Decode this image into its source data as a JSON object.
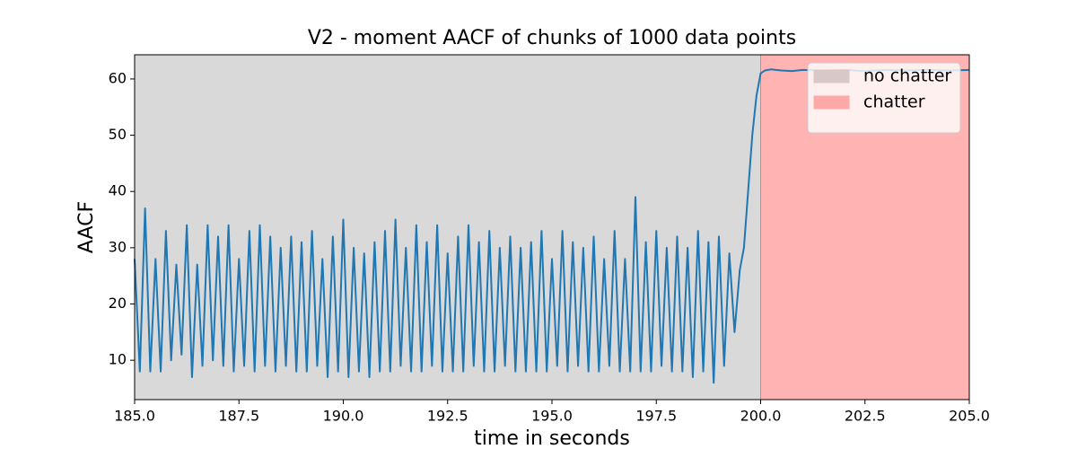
{
  "chart_data": {
    "type": "line",
    "title": "V2 - moment AACF of chunks of 1000 data points",
    "x_label": "time in seconds",
    "y_label": "AACF",
    "xlim": [
      185,
      205
    ],
    "ylim": [
      3,
      64.3
    ],
    "xticks": [
      {
        "value": 185,
        "label": "185.0"
      },
      {
        "value": 187.5,
        "label": "187.5"
      },
      {
        "value": 190,
        "label": "190.0"
      },
      {
        "value": 192.5,
        "label": "192.5"
      },
      {
        "value": 195,
        "label": "195.0"
      },
      {
        "value": 197.5,
        "label": "197.5"
      },
      {
        "value": 200,
        "label": "200.0"
      },
      {
        "value": 202.5,
        "label": "202.5"
      },
      {
        "value": 205,
        "label": "205.0"
      }
    ],
    "yticks": [
      10,
      20,
      30,
      40,
      50,
      60
    ],
    "legend_position": "upper right",
    "regions": [
      {
        "name": "no chatter",
        "start": 185,
        "end": 200,
        "color": "#d9d9d9",
        "legend_color": "#d8c8c8"
      },
      {
        "name": "chatter",
        "start": 200,
        "end": 205,
        "color": "#ffb3b3",
        "legend_color": "#ffa8a8"
      }
    ],
    "x": [
      185,
      185.125,
      185.25,
      185.375,
      185.5,
      185.625,
      185.75,
      185.875,
      186,
      186.125,
      186.25,
      186.375,
      186.5,
      186.625,
      186.75,
      186.875,
      187,
      187.125,
      187.25,
      187.375,
      187.5,
      187.625,
      187.75,
      187.875,
      188,
      188.125,
      188.25,
      188.375,
      188.5,
      188.625,
      188.75,
      188.875,
      189,
      189.125,
      189.25,
      189.375,
      189.5,
      189.625,
      189.75,
      189.875,
      190,
      190.125,
      190.25,
      190.375,
      190.5,
      190.625,
      190.75,
      190.875,
      191,
      191.125,
      191.25,
      191.375,
      191.5,
      191.625,
      191.75,
      191.875,
      192,
      192.125,
      192.25,
      192.375,
      192.5,
      192.625,
      192.75,
      192.875,
      193,
      193.125,
      193.25,
      193.375,
      193.5,
      193.625,
      193.75,
      193.875,
      194,
      194.125,
      194.25,
      194.375,
      194.5,
      194.625,
      194.75,
      194.875,
      195,
      195.125,
      195.25,
      195.375,
      195.5,
      195.625,
      195.75,
      195.875,
      196,
      196.125,
      196.25,
      196.375,
      196.5,
      196.625,
      196.75,
      196.875,
      197,
      197.125,
      197.25,
      197.375,
      197.5,
      197.625,
      197.75,
      197.875,
      198,
      198.125,
      198.25,
      198.375,
      198.5,
      198.625,
      198.75,
      198.875,
      199,
      199.125,
      199.25,
      199.375,
      199.5,
      199.6,
      199.7,
      199.8,
      199.9,
      200,
      200.1,
      200.25,
      200.5,
      200.75,
      201,
      201.5,
      202,
      202.5,
      203,
      203.5,
      204,
      204.5,
      205
    ],
    "series": [
      {
        "name": "AACF",
        "color": "#1f77b4",
        "values": [
          28,
          8,
          37,
          8,
          28,
          8,
          33,
          10,
          27,
          11,
          34,
          7,
          27,
          9,
          34,
          10,
          32,
          9,
          34,
          8,
          28,
          9,
          33,
          8,
          34,
          9,
          32,
          8,
          30,
          9,
          32,
          8,
          31,
          8,
          33,
          9,
          28,
          7,
          32,
          8,
          35,
          7,
          30,
          8,
          29,
          7,
          31,
          8,
          33,
          8,
          35,
          9,
          30,
          8,
          34,
          8,
          31,
          9,
          34,
          8,
          29,
          8,
          32,
          8,
          34,
          9,
          31,
          8,
          33,
          8,
          30,
          9,
          32,
          8,
          30,
          8,
          31,
          8,
          33,
          8,
          28,
          9,
          33,
          8,
          31,
          9,
          30,
          8,
          32,
          8,
          28,
          9,
          33,
          8,
          28,
          8,
          39,
          8,
          31,
          8,
          33,
          9,
          30,
          8,
          32,
          8,
          30,
          7,
          33,
          8,
          31,
          6,
          32,
          9,
          29,
          15,
          26,
          30,
          40,
          50,
          57,
          61,
          61.5,
          61.7,
          61.5,
          61.4,
          61.6,
          61.5,
          61.6,
          61.4,
          61.6,
          61.5,
          61.6,
          61.5,
          61.6
        ]
      }
    ]
  }
}
